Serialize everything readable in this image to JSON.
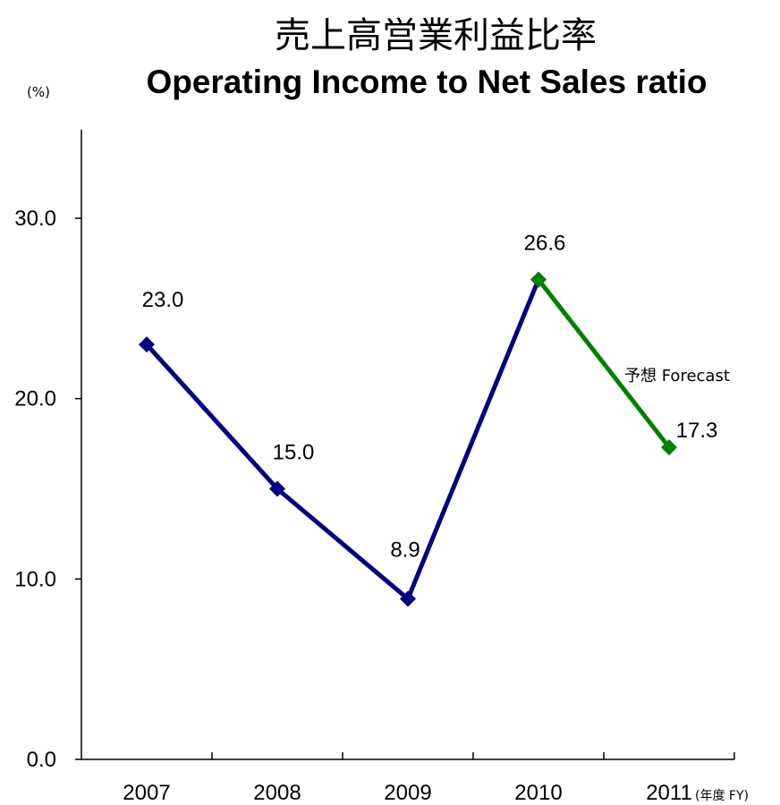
{
  "chart_data": {
    "type": "line",
    "title": "売上高営業利益比率",
    "subtitle": "Operating Income to Net Sales ratio",
    "ylabel": "(%)",
    "xlabel_suffix": "(年度 FY)",
    "categories": [
      "2007",
      "2008",
      "2009",
      "2010",
      "2011"
    ],
    "y_ticks": [
      "0.0",
      "10.0",
      "20.0",
      "30.0"
    ],
    "ylim": [
      0,
      35
    ],
    "grid": false,
    "series": [
      {
        "values": [
          23.0,
          15.0,
          8.9,
          26.6,
          null
        ],
        "labels": [
          "23.0",
          "15.0",
          "8.9",
          "26.6",
          ""
        ],
        "color": "#000080"
      },
      {
        "values": [
          null,
          null,
          null,
          26.6,
          17.3
        ],
        "labels": [
          "",
          "",
          "",
          "",
          "17.3"
        ],
        "color": "#008000"
      }
    ],
    "annotation": "予想  Forecast"
  }
}
